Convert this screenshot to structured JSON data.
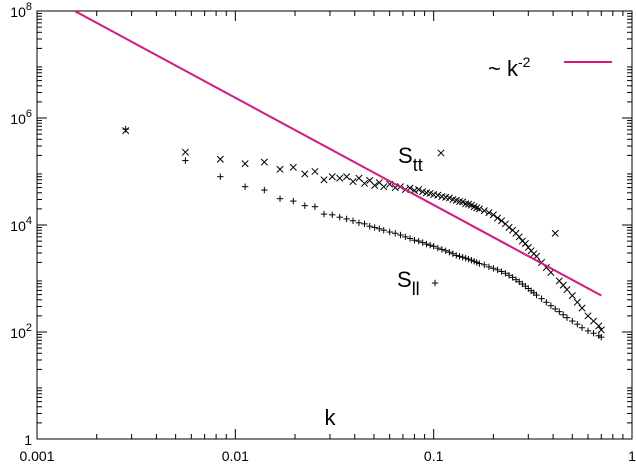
{
  "chart_data": {
    "type": "scatter",
    "xscale": "log",
    "yscale": "log",
    "xlim": [
      0.001,
      1
    ],
    "ylim": [
      1,
      100000000
    ],
    "xlabel": "k",
    "ylabel": "",
    "grid": false,
    "legend_position": "top-right",
    "x_ticks": [
      {
        "value": 0.001,
        "label": "0.001"
      },
      {
        "value": 0.01,
        "label": "0.01"
      },
      {
        "value": 0.1,
        "label": "0.1"
      },
      {
        "value": 1,
        "label": "1"
      }
    ],
    "y_ticks": [
      {
        "value": 1,
        "label": "1",
        "base": "1",
        "exp": ""
      },
      {
        "value": 100,
        "label": "10^2",
        "base": "10",
        "exp": "2"
      },
      {
        "value": 10000,
        "label": "10^4",
        "base": "10",
        "exp": "4"
      },
      {
        "value": 1000000,
        "label": "10^6",
        "base": "10",
        "exp": "6"
      },
      {
        "value": 100000000,
        "label": "10^8",
        "base": "10",
        "exp": "8"
      }
    ],
    "reference_line": {
      "legend_base": "~ k",
      "legend_exp": "-2",
      "color": "#d6177e",
      "points": [
        [
          0.00155,
          100000000
        ],
        [
          0.7,
          480
        ]
      ]
    },
    "series": [
      {
        "name": "S_tt",
        "label_base": "S",
        "label_sub": "tt",
        "marker": "x",
        "color": "#000000",
        "points": [
          [
            0.0028,
            580000
          ],
          [
            0.0056,
            230000
          ],
          [
            0.0084,
            170000
          ],
          [
            0.0112,
            140000
          ],
          [
            0.014,
            150000
          ],
          [
            0.0168,
            110000
          ],
          [
            0.0196,
            120000
          ],
          [
            0.0224,
            90000
          ],
          [
            0.0252,
            100000
          ],
          [
            0.028,
            70000
          ],
          [
            0.0308,
            80000
          ],
          [
            0.0336,
            75000
          ],
          [
            0.0364,
            80000
          ],
          [
            0.0392,
            65000
          ],
          [
            0.042,
            75000
          ],
          [
            0.0448,
            60000
          ],
          [
            0.0476,
            68000
          ],
          [
            0.0504,
            55000
          ],
          [
            0.0532,
            62000
          ],
          [
            0.056,
            52000
          ],
          [
            0.06,
            58000
          ],
          [
            0.064,
            50000
          ],
          [
            0.068,
            52000
          ],
          [
            0.072,
            46000
          ],
          [
            0.076,
            49000
          ],
          [
            0.08,
            44000
          ],
          [
            0.084,
            46000
          ],
          [
            0.088,
            42000
          ],
          [
            0.092,
            40000
          ],
          [
            0.096,
            39000
          ],
          [
            0.1,
            37000
          ],
          [
            0.105,
            36000
          ],
          [
            0.11,
            34000
          ],
          [
            0.115,
            33000
          ],
          [
            0.12,
            32000
          ],
          [
            0.125,
            30000
          ],
          [
            0.13,
            29000
          ],
          [
            0.135,
            27500
          ],
          [
            0.14,
            27000
          ],
          [
            0.145,
            25000
          ],
          [
            0.15,
            24500
          ],
          [
            0.155,
            23500
          ],
          [
            0.16,
            22000
          ],
          [
            0.165,
            21000
          ],
          [
            0.17,
            20000
          ],
          [
            0.18,
            18500
          ],
          [
            0.19,
            17000
          ],
          [
            0.2,
            15500
          ],
          [
            0.21,
            13500
          ],
          [
            0.22,
            12000
          ],
          [
            0.23,
            10500
          ],
          [
            0.24,
            9000
          ],
          [
            0.25,
            8000
          ],
          [
            0.26,
            7000
          ],
          [
            0.27,
            6000
          ],
          [
            0.28,
            5000
          ],
          [
            0.29,
            4500
          ],
          [
            0.3,
            3800
          ],
          [
            0.31,
            3300
          ],
          [
            0.32,
            2900
          ],
          [
            0.33,
            2600
          ],
          [
            0.35,
            2000
          ],
          [
            0.37,
            1600
          ],
          [
            0.39,
            1300
          ],
          [
            0.41,
            7000
          ],
          [
            0.43,
            900
          ],
          [
            0.45,
            750
          ],
          [
            0.47,
            620
          ],
          [
            0.5,
            480
          ],
          [
            0.53,
            360
          ],
          [
            0.56,
            280
          ],
          [
            0.6,
            200
          ],
          [
            0.64,
            160
          ],
          [
            0.68,
            130
          ],
          [
            0.7,
            110
          ]
        ]
      },
      {
        "name": "S_ll",
        "label_base": "S",
        "label_sub": "ll",
        "marker": "+",
        "color": "#000000",
        "points": [
          [
            0.0028,
            620000
          ],
          [
            0.0056,
            160000
          ],
          [
            0.0084,
            80000
          ],
          [
            0.0112,
            52000
          ],
          [
            0.014,
            45000
          ],
          [
            0.0168,
            31000
          ],
          [
            0.0196,
            28000
          ],
          [
            0.0224,
            23000
          ],
          [
            0.0252,
            22000
          ],
          [
            0.028,
            16000
          ],
          [
            0.0308,
            15500
          ],
          [
            0.0336,
            14000
          ],
          [
            0.0364,
            13000
          ],
          [
            0.0392,
            12000
          ],
          [
            0.042,
            11000
          ],
          [
            0.0448,
            10500
          ],
          [
            0.0476,
            9500
          ],
          [
            0.0504,
            9000
          ],
          [
            0.0532,
            8500
          ],
          [
            0.056,
            8000
          ],
          [
            0.06,
            7400
          ],
          [
            0.064,
            7000
          ],
          [
            0.068,
            6500
          ],
          [
            0.072,
            6000
          ],
          [
            0.076,
            5600
          ],
          [
            0.08,
            5200
          ],
          [
            0.084,
            5000
          ],
          [
            0.088,
            4700
          ],
          [
            0.092,
            4400
          ],
          [
            0.096,
            4200
          ],
          [
            0.1,
            4000
          ],
          [
            0.105,
            3700
          ],
          [
            0.11,
            3500
          ],
          [
            0.115,
            3300
          ],
          [
            0.12,
            3100
          ],
          [
            0.125,
            2900
          ],
          [
            0.13,
            2700
          ],
          [
            0.135,
            2600
          ],
          [
            0.14,
            2500
          ],
          [
            0.145,
            2400
          ],
          [
            0.15,
            2300
          ],
          [
            0.155,
            2200
          ],
          [
            0.16,
            2100
          ],
          [
            0.165,
            2000
          ],
          [
            0.17,
            1900
          ],
          [
            0.18,
            1800
          ],
          [
            0.19,
            1650
          ],
          [
            0.2,
            1550
          ],
          [
            0.21,
            1450
          ],
          [
            0.22,
            1350
          ],
          [
            0.23,
            1250
          ],
          [
            0.24,
            1150
          ],
          [
            0.25,
            1050
          ],
          [
            0.26,
            950
          ],
          [
            0.27,
            870
          ],
          [
            0.28,
            790
          ],
          [
            0.29,
            720
          ],
          [
            0.3,
            650
          ],
          [
            0.31,
            590
          ],
          [
            0.32,
            540
          ],
          [
            0.33,
            490
          ],
          [
            0.35,
            420
          ],
          [
            0.37,
            360
          ],
          [
            0.39,
            310
          ],
          [
            0.41,
            270
          ],
          [
            0.43,
            240
          ],
          [
            0.45,
            210
          ],
          [
            0.47,
            185
          ],
          [
            0.5,
            160
          ],
          [
            0.53,
            140
          ],
          [
            0.56,
            120
          ],
          [
            0.6,
            105
          ],
          [
            0.64,
            95
          ],
          [
            0.68,
            85
          ],
          [
            0.7,
            80
          ]
        ]
      }
    ]
  }
}
